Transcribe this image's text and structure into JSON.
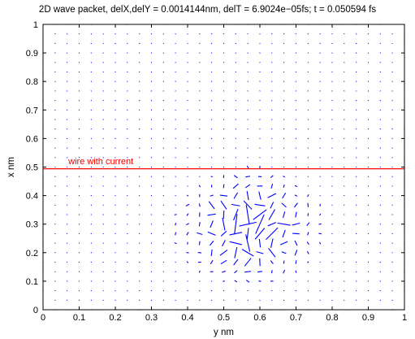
{
  "chart_data": {
    "type": "quiver",
    "title": "2D wave packet, delX,delY = 0.0014144nm, delT = 6.9024e−05fs; t = 0.050594 fs",
    "xlabel": "y nm",
    "ylabel": "x nm",
    "xlim": [
      0,
      1
    ],
    "ylim": [
      0,
      1
    ],
    "xticks": [
      0,
      0.1,
      0.2,
      0.3,
      0.4,
      0.5,
      0.6,
      0.7,
      0.8,
      0.9,
      1
    ],
    "yticks": [
      0,
      0.1,
      0.2,
      0.3,
      0.4,
      0.5,
      0.6,
      0.7,
      0.8,
      0.9,
      1
    ],
    "xtick_labels": [
      "0",
      "0.1",
      "0.2",
      "0.3",
      "0.4",
      "0.5",
      "0.6",
      "0.7",
      "0.8",
      "0.9",
      "1"
    ],
    "ytick_labels": [
      "0",
      "0.1",
      "0.2",
      "0.3",
      "0.4",
      "0.5",
      "0.6",
      "0.7",
      "0.8",
      "0.9",
      "1"
    ],
    "grid": false,
    "box": true,
    "field_color": "#0000ff",
    "field_grid_step": 0.03333,
    "packet_center": [
      0.57,
      0.29
    ],
    "packet_radius": 0.17,
    "wire": {
      "y_value": 0.494,
      "color": "#ff0000",
      "label": "wire with current",
      "label_position": [
        0.07,
        0.51
      ]
    }
  }
}
